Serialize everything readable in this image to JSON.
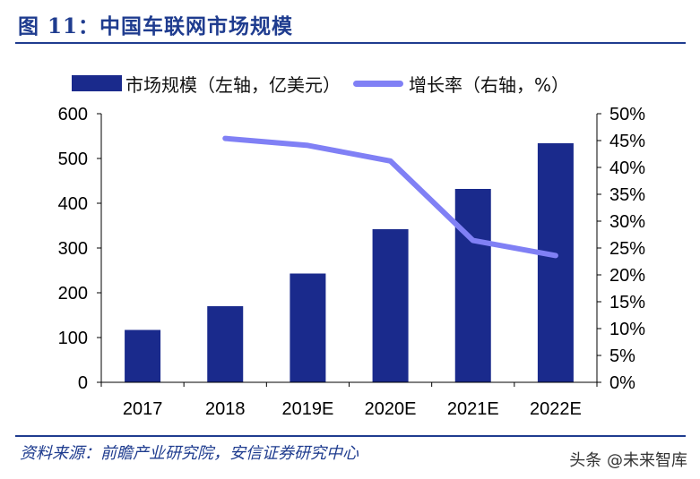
{
  "title": "图 11：中国车联网市场规模",
  "legend": {
    "bar_label": "市场规模（左轴，亿美元）",
    "line_label": "增长率（右轴，%）"
  },
  "source": "资料来源：前瞻产业研究院，安信证券研究中心",
  "watermark": "头条 @未来智库",
  "colors": {
    "bar": "#1a2a8c",
    "line": "#8080f5",
    "title": "#1f3c8f"
  },
  "chart_data": {
    "type": "bar",
    "categories": [
      "2017",
      "2018",
      "2019E",
      "2020E",
      "2021E",
      "2022E"
    ],
    "series": [
      {
        "name": "市场规模（左轴，亿美元）",
        "type": "bar",
        "axis": "left",
        "values": [
          117,
          170,
          243,
          342,
          432,
          534
        ]
      },
      {
        "name": "增长率（右轴，%）",
        "type": "line",
        "axis": "right",
        "values": [
          null,
          45.4,
          44.1,
          41.2,
          26.4,
          23.6
        ]
      }
    ],
    "left_axis": {
      "ylim": [
        0,
        600
      ],
      "ticks": [
        "0",
        "100",
        "200",
        "300",
        "400",
        "500",
        "600"
      ]
    },
    "right_axis": {
      "ylim": [
        0,
        50
      ],
      "ticks": [
        "0%",
        "5%",
        "10%",
        "15%",
        "20%",
        "25%",
        "30%",
        "35%",
        "40%",
        "45%",
        "50%"
      ]
    },
    "grid": false,
    "legend_position": "top"
  }
}
